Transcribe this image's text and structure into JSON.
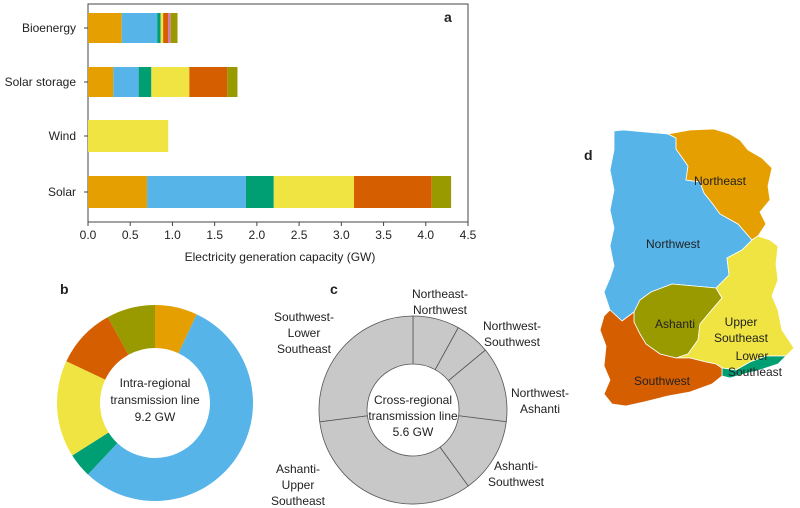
{
  "panels": {
    "a": "a",
    "b": "b",
    "c": "c",
    "d": "d"
  },
  "colors": {
    "Northeast": "#E69F00",
    "Northwest": "#56B4E9",
    "Ashanti": "#009E73",
    "Upper Southeast": "#F0E442",
    "Southwest": "#D55E00",
    "Lower Southeast": "#999900",
    "Bioenergy extra": "#CC79A7",
    "cross": "#c8c8c8"
  },
  "chart_data": [
    {
      "type": "bar",
      "orientation": "horizontal",
      "stacked": true,
      "categories": [
        "Bioenergy",
        "Solar storage",
        "Wind",
        "Solar"
      ],
      "xlabel": "Electricity generation capacity (GW)",
      "xlim": [
        0,
        4.5
      ],
      "xticks": [
        "0.0",
        "0.5",
        "1.0",
        "1.5",
        "2.0",
        "2.5",
        "3.0",
        "3.5",
        "4.0",
        "4.5"
      ],
      "segments": [
        {
          "category": "Bioenergy",
          "parts": [
            {
              "color": "#E69F00",
              "value": 0.4
            },
            {
              "color": "#56B4E9",
              "value": 0.42
            },
            {
              "color": "#009E73",
              "value": 0.04
            },
            {
              "color": "#F0E442",
              "value": 0.03
            },
            {
              "color": "#D55E00",
              "value": 0.06
            },
            {
              "color": "#CC79A7",
              "value": 0.03
            },
            {
              "color": "#999900",
              "value": 0.08
            }
          ]
        },
        {
          "category": "Solar storage",
          "parts": [
            {
              "color": "#E69F00",
              "value": 0.3
            },
            {
              "color": "#56B4E9",
              "value": 0.3
            },
            {
              "color": "#009E73",
              "value": 0.15
            },
            {
              "color": "#F0E442",
              "value": 0.45
            },
            {
              "color": "#D55E00",
              "value": 0.45
            },
            {
              "color": "#999900",
              "value": 0.12
            }
          ]
        },
        {
          "category": "Wind",
          "parts": [
            {
              "color": "#F0E442",
              "value": 0.95
            }
          ]
        },
        {
          "category": "Solar",
          "parts": [
            {
              "color": "#E69F00",
              "value": 0.7
            },
            {
              "color": "#56B4E9",
              "value": 1.17
            },
            {
              "color": "#009E73",
              "value": 0.33
            },
            {
              "color": "#F0E442",
              "value": 0.95
            },
            {
              "color": "#D55E00",
              "value": 0.92
            },
            {
              "color": "#999900",
              "value": 0.23
            }
          ]
        }
      ]
    },
    {
      "type": "pie",
      "donut": true,
      "center_text": [
        "Intra-regional",
        "transmission line",
        "9.2 GW"
      ],
      "slices": [
        {
          "color": "#E69F00",
          "value": 0.07
        },
        {
          "color": "#56B4E9",
          "value": 0.55
        },
        {
          "color": "#009E73",
          "value": 0.04
        },
        {
          "color": "#F0E442",
          "value": 0.16
        },
        {
          "color": "#D55E00",
          "value": 0.1
        },
        {
          "color": "#999900",
          "value": 0.08
        }
      ]
    },
    {
      "type": "pie",
      "donut": true,
      "center_text": [
        "Cross-regional",
        "transmission line",
        "5.6 GW"
      ],
      "slices": [
        {
          "name": "Northeast-Northwest",
          "value": 0.08
        },
        {
          "name": "Northwest-Southwest",
          "value": 0.06
        },
        {
          "name": "Northwest-Ashanti",
          "value": 0.13
        },
        {
          "name": "Ashanti-Southwest",
          "value": 0.13
        },
        {
          "name": "Ashanti-Upper Southeast",
          "value": 0.33
        },
        {
          "name": "Southwest-Lower Southeast",
          "value": 0.27
        }
      ],
      "slice_labels": [
        [
          "Northeast-",
          "Northwest"
        ],
        [
          "Northwest-",
          "Southwest"
        ],
        [
          "Northwest-",
          "Ashanti"
        ],
        [
          "Ashanti-",
          "Southwest"
        ],
        [
          "Ashanti-",
          "Upper",
          "Southeast"
        ],
        [
          "Southwest-",
          "Lower",
          "Southeast"
        ]
      ]
    }
  ],
  "map": {
    "regions": [
      {
        "name": "Northwest",
        "label": [
          "Northwest"
        ]
      },
      {
        "name": "Northeast",
        "label": [
          "Northeast"
        ]
      },
      {
        "name": "Ashanti",
        "label": [
          "Ashanti"
        ]
      },
      {
        "name": "Upper Southeast",
        "label": [
          "Upper",
          "Southeast"
        ]
      },
      {
        "name": "Lower Southeast",
        "label": [
          "Lower",
          "Southeast"
        ]
      },
      {
        "name": "Southwest",
        "label": [
          "Southwest"
        ]
      }
    ]
  }
}
